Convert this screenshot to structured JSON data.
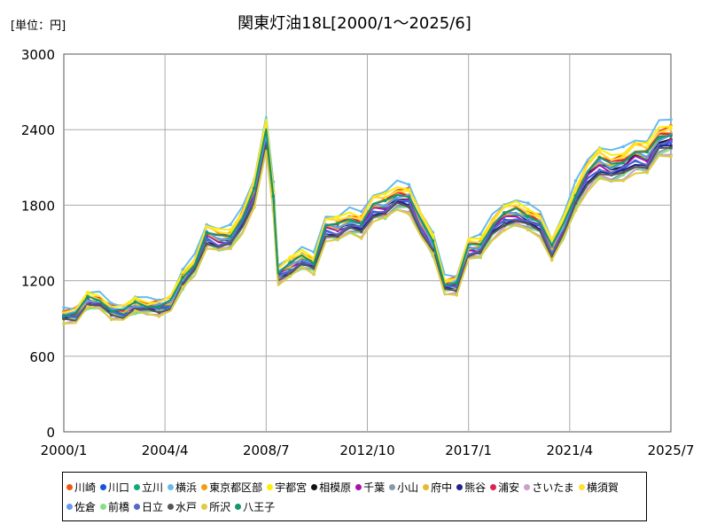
{
  "chart_data": {
    "type": "line",
    "title": "関東灯油18L[2000/1～2025/6]",
    "unit_label": "[単位：円]",
    "xlabel": "",
    "ylabel": "",
    "xlim": [
      2000.0,
      2025.5
    ],
    "ylim": [
      0,
      3000
    ],
    "yticks": [
      "0",
      "600",
      "1200",
      "1800",
      "2400",
      "3000"
    ],
    "xticks": [
      {
        "label": "2000/1",
        "x": 2000.0
      },
      {
        "label": "2004/4",
        "x": 2004.25
      },
      {
        "label": "2008/7",
        "x": 2008.5
      },
      {
        "label": "2012/10",
        "x": 2012.75
      },
      {
        "label": "2017/1",
        "x": 2017.0
      },
      {
        "label": "2021/4",
        "x": 2021.25
      },
      {
        "label": "2025/7",
        "x": 2025.5
      }
    ],
    "grid": true,
    "legend_position": "bottom",
    "base": {
      "x": [
        2000.0,
        2000.5,
        2001.0,
        2001.5,
        2002.0,
        2002.5,
        2003.0,
        2003.5,
        2004.0,
        2004.5,
        2005.0,
        2005.5,
        2006.0,
        2006.5,
        2007.0,
        2007.5,
        2008.0,
        2008.5,
        2008.8,
        2009.0,
        2009.5,
        2010.0,
        2010.5,
        2011.0,
        2011.5,
        2012.0,
        2012.5,
        2013.0,
        2013.5,
        2014.0,
        2014.5,
        2015.0,
        2015.5,
        2016.0,
        2016.5,
        2017.0,
        2017.5,
        2018.0,
        2018.5,
        2019.0,
        2019.5,
        2020.0,
        2020.5,
        2021.0,
        2021.5,
        2022.0,
        2022.5,
        2023.0,
        2023.5,
        2024.0,
        2024.5,
        2025.0,
        2025.5
      ],
      "y": [
        920,
        930,
        1040,
        1030,
        960,
        950,
        1000,
        990,
        990,
        1020,
        1200,
        1320,
        1560,
        1520,
        1530,
        1680,
        1900,
        2350,
        1850,
        1250,
        1310,
        1370,
        1330,
        1620,
        1610,
        1660,
        1640,
        1780,
        1790,
        1860,
        1850,
        1650,
        1480,
        1160,
        1170,
        1450,
        1460,
        1620,
        1710,
        1730,
        1690,
        1650,
        1450,
        1620,
        1860,
        2040,
        2130,
        2090,
        2120,
        2190,
        2170,
        2310,
        2330
      ]
    },
    "series": [
      {
        "name": "川崎",
        "color": "#ee5511",
        "offset": 100
      },
      {
        "name": "川口",
        "color": "#1155dd",
        "offset": -50
      },
      {
        "name": "立川",
        "color": "#11aa77",
        "offset": 10
      },
      {
        "name": "横浜",
        "color": "#66bbee",
        "offset": 160
      },
      {
        "name": "東京都区部",
        "color": "#eea011",
        "offset": 60
      },
      {
        "name": "宇都宮",
        "color": "#ffee00",
        "offset": 120
      },
      {
        "name": "相模原",
        "color": "#111111",
        "offset": 0
      },
      {
        "name": "千葉",
        "color": "#aa11aa",
        "offset": -20
      },
      {
        "name": "小山",
        "color": "#8899aa",
        "offset": -90
      },
      {
        "name": "府中",
        "color": "#e8b830",
        "offset": 30
      },
      {
        "name": "熊谷",
        "color": "#222288",
        "offset": -60
      },
      {
        "name": "浦安",
        "color": "#dd2255",
        "offset": 50
      },
      {
        "name": "さいたま",
        "color": "#c8a0c8",
        "offset": -120
      },
      {
        "name": "横須賀",
        "color": "#ffe033",
        "offset": 90
      },
      {
        "name": "佐倉",
        "color": "#6699ee",
        "offset": 20
      },
      {
        "name": "前橋",
        "color": "#88dd88",
        "offset": -110
      },
      {
        "name": "日立",
        "color": "#5566cc",
        "offset": -40
      },
      {
        "name": "水戸",
        "color": "#555555",
        "offset": -80
      },
      {
        "name": "所沢",
        "color": "#ddcc44",
        "offset": -140
      },
      {
        "name": "八王子",
        "color": "#119966",
        "offset": 40
      }
    ]
  }
}
